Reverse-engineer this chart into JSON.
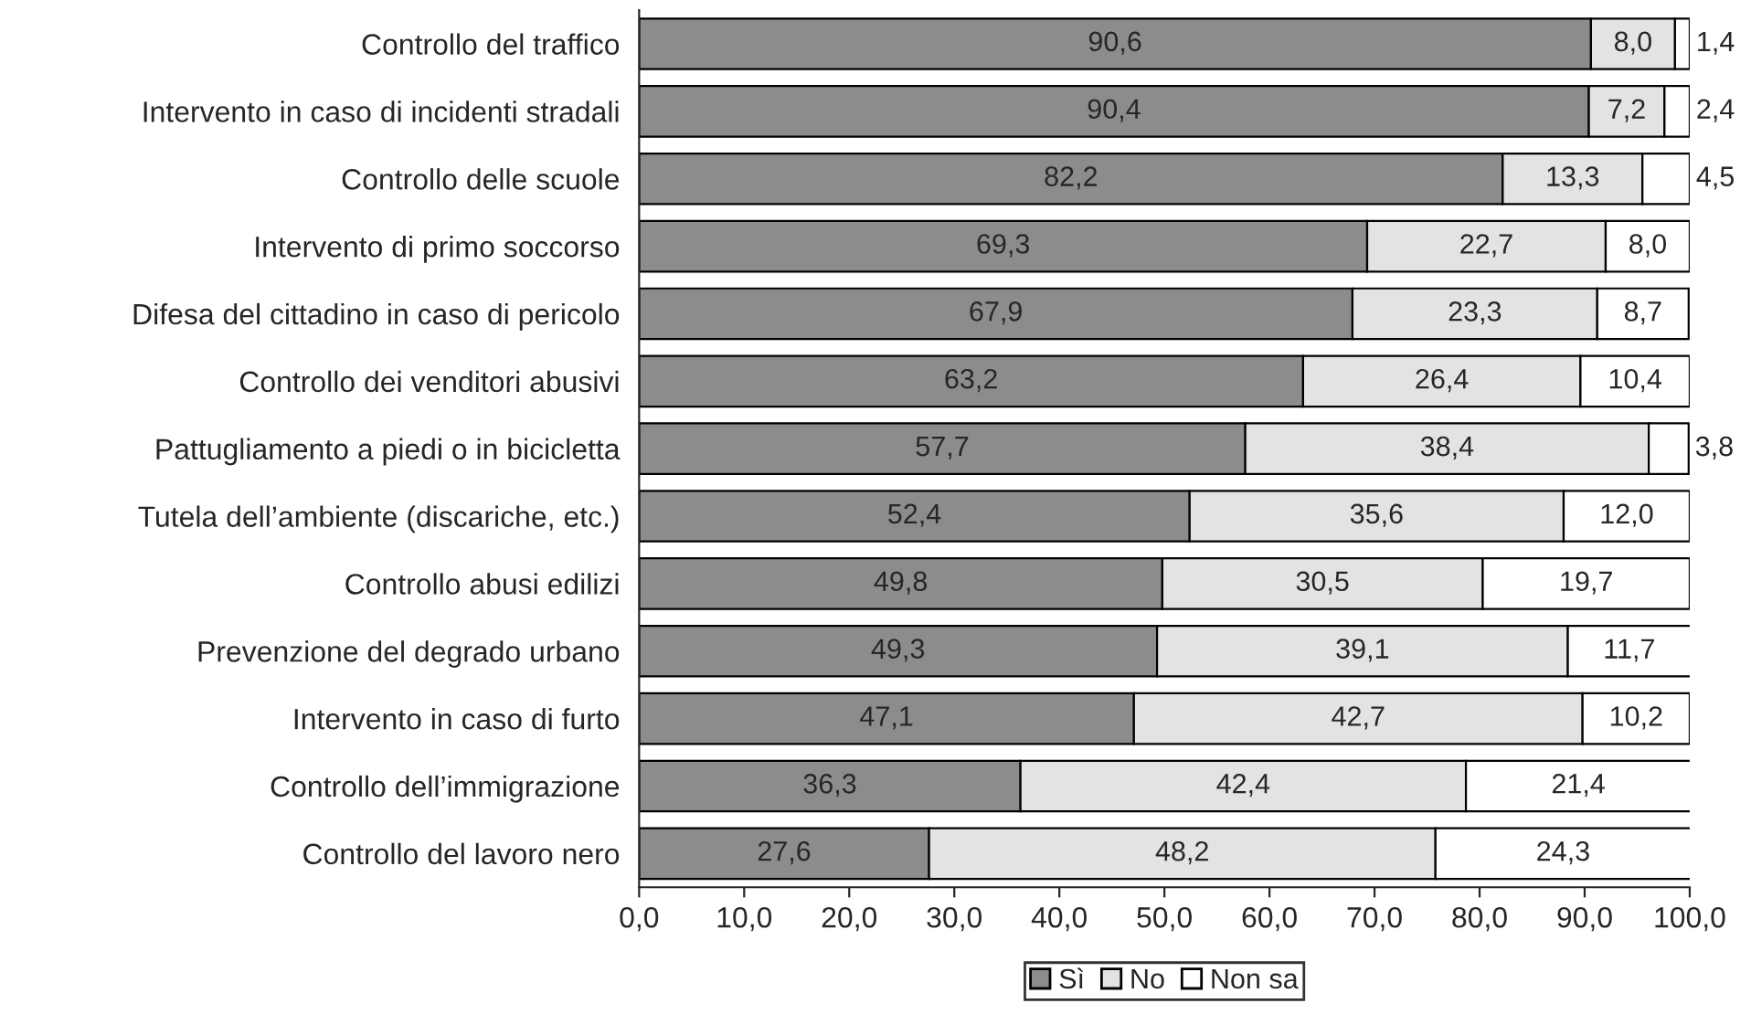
{
  "chart_data": {
    "type": "bar",
    "orientation": "horizontal",
    "stacked": true,
    "categories": [
      "Controllo del traffico",
      "Intervento in caso di incidenti stradali",
      "Controllo delle scuole",
      "Intervento di primo soccorso",
      "Difesa del cittadino in caso di pericolo",
      "Controllo dei venditori abusivi",
      "Pattugliamento a piedi o in bicicletta",
      "Tutela dell’ambiente (discariche, etc.)",
      "Controllo abusi edilizi",
      "Prevenzione del degrado urbano",
      "Intervento in caso di furto",
      "Controllo dell’immigrazione",
      "Controllo del lavoro nero"
    ],
    "series": [
      {
        "name": "Sì",
        "color": "#8c8c8c",
        "values": [
          90.6,
          90.4,
          82.2,
          69.3,
          67.9,
          63.2,
          57.7,
          52.4,
          49.8,
          49.3,
          47.1,
          36.3,
          27.6
        ],
        "value_labels": [
          "90,6",
          "90,4",
          "82,2",
          "69,3",
          "67,9",
          "63,2",
          "57,7",
          "52,4",
          "49,8",
          "49,3",
          "47,1",
          "36,3",
          "27,6"
        ]
      },
      {
        "name": "No",
        "color": "#e3e3e3",
        "values": [
          8.0,
          7.2,
          13.3,
          22.7,
          23.3,
          26.4,
          38.4,
          35.6,
          30.5,
          39.1,
          42.7,
          42.4,
          48.2
        ],
        "value_labels": [
          "8,0",
          "7,2",
          "13,3",
          "22,7",
          "23,3",
          "26,4",
          "38,4",
          "35,6",
          "30,5",
          "39,1",
          "42,7",
          "42,4",
          "48,2"
        ]
      },
      {
        "name": "Non sa",
        "color": "#ffffff",
        "values": [
          1.4,
          2.4,
          4.5,
          8.0,
          8.7,
          10.4,
          3.8,
          12.0,
          19.7,
          11.7,
          10.2,
          21.4,
          24.3
        ],
        "value_labels": [
          "1,4",
          "2,4",
          "4,5",
          "8,0",
          "8,7",
          "10,4",
          "3,8",
          "12,0",
          "19,7",
          "11,7",
          "10,2",
          "21,4",
          "24,3"
        ]
      }
    ],
    "xlim": [
      0,
      100
    ],
    "xticks": [
      {
        "value": 0,
        "label": "0,0"
      },
      {
        "value": 10,
        "label": "10,0"
      },
      {
        "value": 20,
        "label": "20,0"
      },
      {
        "value": 30,
        "label": "30,0"
      },
      {
        "value": 40,
        "label": "40,0"
      },
      {
        "value": 50,
        "label": "50,0"
      },
      {
        "value": 60,
        "label": "60,0"
      },
      {
        "value": 70,
        "label": "70,0"
      },
      {
        "value": 80,
        "label": "80,0"
      },
      {
        "value": 90,
        "label": "90,0"
      },
      {
        "value": 100,
        "label": "100,0"
      }
    ],
    "grid": false,
    "legend": "bottom"
  }
}
